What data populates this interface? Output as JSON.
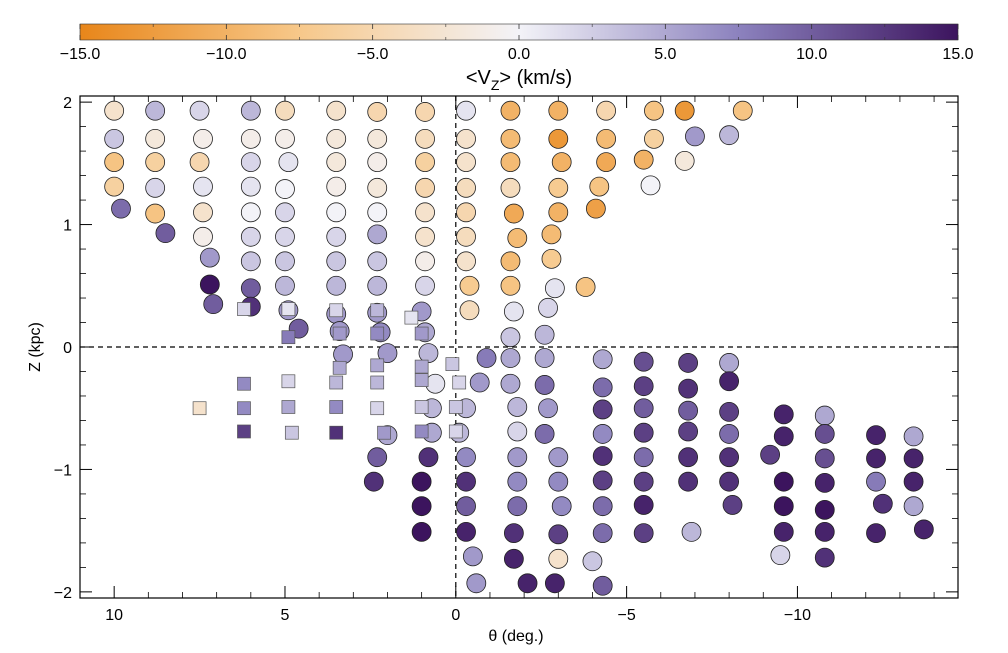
{
  "chart_data": {
    "type": "scatter",
    "title": "",
    "xlabel": "θ (deg.)",
    "ylabel": "Z (kpc)",
    "xlim": [
      11,
      -14.7
    ],
    "ylim": [
      -2.05,
      2.05
    ],
    "x_ticks": [
      10,
      5,
      0,
      -5,
      -10
    ],
    "x_tick_labels": [
      "10",
      "5",
      "0",
      "−5",
      "−10"
    ],
    "y_ticks": [
      2,
      1,
      0,
      -1,
      -2
    ],
    "y_tick_labels": [
      "2",
      "1",
      "0",
      "−1",
      "−2"
    ],
    "reference_lines": {
      "x": 0,
      "y": 0,
      "style": "dashed"
    },
    "colorbar": {
      "label": "<V_Z> (km/s)",
      "label_main": "<V",
      "label_sub": "Z",
      "label_tail": "> (km/s)",
      "position": "top",
      "range": [
        -15,
        15
      ],
      "ticks": [
        -15,
        -10,
        -5,
        0,
        5,
        10,
        15
      ],
      "tick_labels": [
        "−15.0",
        "−10.0",
        "−5.0",
        "0.0",
        "5.0",
        "10.0",
        "15.0"
      ],
      "colors": [
        "#E8861A",
        "#F7C88A",
        "#F3F3F8",
        "#8C82BE",
        "#3C145E"
      ]
    },
    "series": [
      {
        "marker": "circle",
        "points": [
          [
            10.0,
            1.93,
            -3
          ],
          [
            8.8,
            1.93,
            4
          ],
          [
            7.5,
            1.93,
            2
          ],
          [
            6.0,
            1.93,
            4
          ],
          [
            5.0,
            1.93,
            -4
          ],
          [
            3.5,
            1.93,
            -3
          ],
          [
            2.3,
            1.92,
            -5
          ],
          [
            0.9,
            1.92,
            -5
          ],
          [
            -0.3,
            1.93,
            1
          ],
          [
            -1.6,
            1.93,
            -10
          ],
          [
            -3.0,
            1.93,
            -10
          ],
          [
            -4.4,
            1.93,
            -5
          ],
          [
            -5.8,
            1.93,
            -8
          ],
          [
            -6.7,
            1.93,
            -13
          ],
          [
            -8.4,
            1.93,
            -8
          ],
          [
            10.0,
            1.7,
            3
          ],
          [
            8.8,
            1.7,
            -2
          ],
          [
            7.4,
            1.7,
            -1
          ],
          [
            6.0,
            1.7,
            -1
          ],
          [
            5.0,
            1.7,
            -1
          ],
          [
            3.5,
            1.7,
            -2
          ],
          [
            2.3,
            1.7,
            -2
          ],
          [
            0.9,
            1.7,
            -4
          ],
          [
            -0.3,
            1.7,
            -3
          ],
          [
            -1.6,
            1.7,
            -9
          ],
          [
            -3.0,
            1.7,
            -13
          ],
          [
            -4.4,
            1.7,
            -9
          ],
          [
            -5.8,
            1.7,
            -6
          ],
          [
            -7.0,
            1.72,
            6
          ],
          [
            -8.0,
            1.73,
            4
          ],
          [
            10.0,
            1.51,
            -8
          ],
          [
            8.8,
            1.51,
            -6
          ],
          [
            7.5,
            1.51,
            -5
          ],
          [
            6.0,
            1.51,
            2
          ],
          [
            4.9,
            1.51,
            1
          ],
          [
            3.5,
            1.51,
            -2
          ],
          [
            2.3,
            1.51,
            -1
          ],
          [
            0.9,
            1.51,
            -6
          ],
          [
            -0.3,
            1.51,
            -3
          ],
          [
            -1.6,
            1.51,
            -9
          ],
          [
            -3.1,
            1.51,
            -10
          ],
          [
            -4.4,
            1.51,
            -11
          ],
          [
            -5.5,
            1.53,
            -10
          ],
          [
            -6.7,
            1.52,
            -2
          ],
          [
            10.0,
            1.31,
            -6
          ],
          [
            8.8,
            1.3,
            2
          ],
          [
            7.4,
            1.31,
            1
          ],
          [
            6.0,
            1.31,
            1
          ],
          [
            5.0,
            1.29,
            0
          ],
          [
            3.5,
            1.31,
            -1
          ],
          [
            2.3,
            1.3,
            -2
          ],
          [
            0.9,
            1.3,
            -5
          ],
          [
            -0.3,
            1.3,
            -4
          ],
          [
            -1.6,
            1.3,
            -4
          ],
          [
            -3.0,
            1.3,
            -7
          ],
          [
            -4.2,
            1.31,
            -8
          ],
          [
            -5.7,
            1.32,
            0
          ],
          [
            9.8,
            1.13,
            9
          ],
          [
            8.8,
            1.09,
            -8
          ],
          [
            7.4,
            1.1,
            -3
          ],
          [
            6.0,
            1.1,
            0
          ],
          [
            5.0,
            1.1,
            2
          ],
          [
            3.5,
            1.1,
            0
          ],
          [
            2.3,
            1.1,
            0
          ],
          [
            0.9,
            1.1,
            -3
          ],
          [
            -0.3,
            1.1,
            -5
          ],
          [
            -1.7,
            1.09,
            -11
          ],
          [
            -3.0,
            1.1,
            -10
          ],
          [
            -4.1,
            1.13,
            -12
          ],
          [
            8.5,
            0.93,
            10
          ],
          [
            7.4,
            0.9,
            -1
          ],
          [
            6.0,
            0.9,
            2
          ],
          [
            5.0,
            0.9,
            2
          ],
          [
            3.5,
            0.9,
            2
          ],
          [
            2.3,
            0.92,
            5
          ],
          [
            0.9,
            0.9,
            -3
          ],
          [
            -0.3,
            0.9,
            -4
          ],
          [
            -1.8,
            0.89,
            -9
          ],
          [
            -2.8,
            0.92,
            -9
          ],
          [
            7.2,
            0.73,
            6
          ],
          [
            6.0,
            0.7,
            3
          ],
          [
            5.0,
            0.7,
            3
          ],
          [
            3.5,
            0.7,
            3
          ],
          [
            2.3,
            0.7,
            3
          ],
          [
            0.9,
            0.7,
            -1
          ],
          [
            -0.3,
            0.7,
            -3
          ],
          [
            -1.6,
            0.7,
            -9
          ],
          [
            -2.8,
            0.72,
            -7
          ],
          [
            7.2,
            0.51,
            15
          ],
          [
            6.0,
            0.48,
            10
          ],
          [
            5.0,
            0.5,
            4
          ],
          [
            3.5,
            0.5,
            4
          ],
          [
            2.3,
            0.5,
            4
          ],
          [
            0.9,
            0.5,
            2
          ],
          [
            -0.4,
            0.5,
            -7
          ],
          [
            -1.6,
            0.5,
            -8
          ],
          [
            -2.9,
            0.48,
            1
          ],
          [
            -3.8,
            0.49,
            -8
          ],
          [
            7.1,
            0.35,
            10
          ],
          [
            6.0,
            0.33,
            13
          ],
          [
            4.9,
            0.3,
            6
          ],
          [
            3.5,
            0.27,
            6
          ],
          [
            2.3,
            0.28,
            6
          ],
          [
            1.0,
            0.29,
            6
          ],
          [
            -0.4,
            0.3,
            -4
          ],
          [
            -1.7,
            0.29,
            1
          ],
          [
            -2.7,
            0.32,
            2
          ],
          [
            4.6,
            0.15,
            10
          ],
          [
            3.4,
            0.13,
            6
          ],
          [
            2.2,
            0.12,
            7
          ],
          [
            0.9,
            0.12,
            5
          ],
          [
            -1.6,
            0.08,
            3
          ],
          [
            -2.6,
            0.1,
            4
          ],
          [
            3.3,
            -0.06,
            6
          ],
          [
            2.0,
            -0.05,
            6
          ],
          [
            0.8,
            -0.05,
            4
          ],
          [
            -0.9,
            -0.09,
            8
          ],
          [
            -1.6,
            -0.09,
            5
          ],
          [
            -2.6,
            -0.09,
            5
          ],
          [
            -4.3,
            -0.1,
            5
          ],
          [
            -5.5,
            -0.12,
            11
          ],
          [
            -6.8,
            -0.13,
            12
          ],
          [
            -8.0,
            -0.13,
            5
          ],
          [
            0.6,
            -0.3,
            1
          ],
          [
            -0.7,
            -0.29,
            6
          ],
          [
            -1.6,
            -0.3,
            5
          ],
          [
            -2.6,
            -0.31,
            9
          ],
          [
            -4.3,
            -0.33,
            9
          ],
          [
            -5.5,
            -0.32,
            12
          ],
          [
            -6.8,
            -0.34,
            13
          ],
          [
            -8.0,
            -0.28,
            14
          ],
          [
            0.7,
            -0.5,
            4
          ],
          [
            -0.3,
            -0.5,
            4
          ],
          [
            -1.8,
            -0.49,
            4
          ],
          [
            -2.7,
            -0.5,
            6
          ],
          [
            -4.3,
            -0.51,
            12
          ],
          [
            -5.5,
            -0.5,
            10
          ],
          [
            -6.8,
            -0.52,
            10
          ],
          [
            -8.0,
            -0.53,
            12
          ],
          [
            -9.6,
            -0.55,
            14
          ],
          [
            -10.8,
            -0.56,
            5
          ],
          [
            2.0,
            -0.72,
            5
          ],
          [
            0.7,
            -0.7,
            5
          ],
          [
            -0.1,
            -0.7,
            4
          ],
          [
            -1.8,
            -0.69,
            2
          ],
          [
            -2.6,
            -0.71,
            9
          ],
          [
            -4.3,
            -0.71,
            7
          ],
          [
            -5.5,
            -0.7,
            12
          ],
          [
            -6.8,
            -0.69,
            12
          ],
          [
            -8.0,
            -0.71,
            9
          ],
          [
            -9.6,
            -0.73,
            14
          ],
          [
            -10.8,
            -0.71,
            11
          ],
          [
            -12.3,
            -0.72,
            14
          ],
          [
            -13.4,
            -0.73,
            5
          ],
          [
            2.3,
            -0.9,
            10
          ],
          [
            0.8,
            -0.9,
            13
          ],
          [
            -0.3,
            -0.9,
            7
          ],
          [
            -1.8,
            -0.9,
            6
          ],
          [
            -3.0,
            -0.9,
            6
          ],
          [
            -4.3,
            -0.89,
            13
          ],
          [
            -5.5,
            -0.9,
            9
          ],
          [
            -6.8,
            -0.9,
            13
          ],
          [
            -8.0,
            -0.9,
            13
          ],
          [
            -9.2,
            -0.88,
            12
          ],
          [
            -10.8,
            -0.91,
            11
          ],
          [
            -12.3,
            -0.91,
            14
          ],
          [
            -13.4,
            -0.91,
            14
          ],
          [
            2.4,
            -1.1,
            13
          ],
          [
            1.0,
            -1.1,
            15
          ],
          [
            -0.3,
            -1.1,
            13
          ],
          [
            -1.8,
            -1.1,
            7
          ],
          [
            -3.0,
            -1.1,
            7
          ],
          [
            -4.3,
            -1.09,
            12
          ],
          [
            -5.5,
            -1.1,
            12
          ],
          [
            -6.8,
            -1.1,
            13
          ],
          [
            -8.0,
            -1.1,
            13
          ],
          [
            -9.6,
            -1.1,
            15
          ],
          [
            -10.8,
            -1.11,
            14
          ],
          [
            -12.3,
            -1.1,
            8
          ],
          [
            -13.4,
            -1.1,
            14
          ],
          [
            1.0,
            -1.3,
            15
          ],
          [
            -0.3,
            -1.3,
            10
          ],
          [
            -1.8,
            -1.3,
            9
          ],
          [
            -3.1,
            -1.3,
            7
          ],
          [
            -4.3,
            -1.3,
            9
          ],
          [
            -5.5,
            -1.29,
            14
          ],
          [
            -8.1,
            -1.29,
            12
          ],
          [
            -9.6,
            -1.3,
            15
          ],
          [
            -10.8,
            -1.33,
            15
          ],
          [
            -12.5,
            -1.28,
            13
          ],
          [
            -13.4,
            -1.3,
            5
          ],
          [
            1.0,
            -1.51,
            15
          ],
          [
            -0.3,
            -1.51,
            14
          ],
          [
            -1.7,
            -1.52,
            13
          ],
          [
            -3.0,
            -1.53,
            12
          ],
          [
            -4.3,
            -1.52,
            9
          ],
          [
            -5.5,
            -1.52,
            12
          ],
          [
            -6.9,
            -1.51,
            4
          ],
          [
            -9.6,
            -1.51,
            14
          ],
          [
            -10.8,
            -1.51,
            14
          ],
          [
            -12.3,
            -1.52,
            14
          ],
          [
            -13.7,
            -1.49,
            14
          ],
          [
            -0.5,
            -1.71,
            6
          ],
          [
            -1.7,
            -1.73,
            14
          ],
          [
            -3.0,
            -1.73,
            -3
          ],
          [
            -4.0,
            -1.75,
            3
          ],
          [
            -9.5,
            -1.7,
            2
          ],
          [
            -10.8,
            -1.72,
            13
          ],
          [
            -0.6,
            -1.93,
            6
          ],
          [
            -2.1,
            -1.93,
            14
          ],
          [
            -2.9,
            -1.93,
            14
          ],
          [
            -4.3,
            -1.95,
            10
          ]
        ]
      },
      {
        "marker": "square",
        "points": [
          [
            6.2,
            0.31,
            2
          ],
          [
            4.9,
            0.31,
            1
          ],
          [
            3.5,
            0.3,
            2
          ],
          [
            2.3,
            0.3,
            4
          ],
          [
            1.3,
            0.24,
            1
          ],
          [
            4.9,
            0.08,
            8
          ],
          [
            3.4,
            0.11,
            6
          ],
          [
            2.3,
            0.11,
            7
          ],
          [
            1.0,
            0.11,
            6
          ],
          [
            0.1,
            -0.14,
            3
          ],
          [
            3.4,
            -0.17,
            5
          ],
          [
            2.3,
            -0.15,
            5
          ],
          [
            1.0,
            -0.16,
            5
          ],
          [
            6.2,
            -0.3,
            7
          ],
          [
            4.9,
            -0.28,
            2
          ],
          [
            3.5,
            -0.29,
            4
          ],
          [
            2.3,
            -0.29,
            4
          ],
          [
            1.0,
            -0.27,
            5
          ],
          [
            -0.1,
            -0.29,
            2
          ],
          [
            7.5,
            -0.5,
            -3
          ],
          [
            6.2,
            -0.5,
            7
          ],
          [
            4.9,
            -0.49,
            5
          ],
          [
            3.5,
            -0.49,
            7
          ],
          [
            2.3,
            -0.5,
            2
          ],
          [
            1.0,
            -0.49,
            3
          ],
          [
            0.0,
            -0.49,
            3
          ],
          [
            6.2,
            -0.69,
            12
          ],
          [
            4.8,
            -0.7,
            3
          ],
          [
            3.5,
            -0.7,
            13
          ],
          [
            2.1,
            -0.7,
            6
          ],
          [
            1.0,
            -0.69,
            7
          ],
          [
            0.0,
            -0.69,
            2
          ]
        ]
      }
    ]
  }
}
